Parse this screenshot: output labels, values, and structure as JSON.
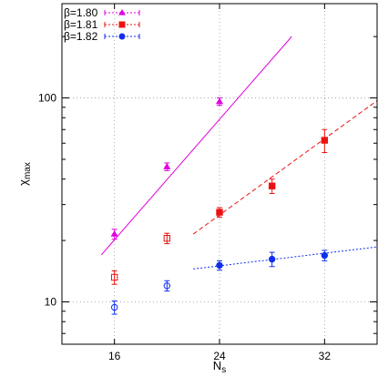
{
  "chart_data": {
    "type": "scatter",
    "title": "",
    "xlabel": "N",
    "xlabel_sub": "s",
    "ylabel": "χ",
    "ylabel_sub": "max",
    "xlim": [
      12,
      36
    ],
    "ylim": [
      6.2,
      290
    ],
    "yscale": "log",
    "xscale": "linear",
    "grid": true,
    "legend_position": "top-left",
    "xticks": [
      16,
      24,
      32
    ],
    "xtick_labels": [
      "16",
      "24",
      "32"
    ],
    "yticks": [
      10,
      100
    ],
    "ytick_labels": [
      "10",
      "100"
    ],
    "series": [
      {
        "name": "β=1.80",
        "color": "#e000e0",
        "marker": "triangle",
        "line_style": "dotted",
        "points": [
          {
            "x": 16,
            "y": 21.5,
            "err": 1.2
          },
          {
            "x": 20,
            "y": 46,
            "err": 2
          },
          {
            "x": 24,
            "y": 96,
            "err": 4
          }
        ],
        "fit": {
          "x": [
            15,
            29.5
          ],
          "y": [
            17,
            200
          ],
          "style": "solid"
        }
      },
      {
        "name": "β=1.81",
        "color": "#ee1111",
        "marker": "square",
        "line_style": "dotted",
        "points": [
          {
            "x": 16,
            "y": 13.2,
            "err": 1.0,
            "open": true
          },
          {
            "x": 20,
            "y": 20.5,
            "err": 1.2,
            "open": true
          },
          {
            "x": 24,
            "y": 27.5,
            "err": 1.5
          },
          {
            "x": 28,
            "y": 37,
            "err": 3
          },
          {
            "x": 32,
            "y": 62,
            "err": 8
          }
        ],
        "fit": {
          "x": [
            22,
            36
          ],
          "y": [
            21.5,
            97
          ],
          "style": "dashed"
        }
      },
      {
        "name": "β=1.82",
        "color": "#1030ee",
        "marker": "circle",
        "line_style": "dotted",
        "points": [
          {
            "x": 16,
            "y": 9.4,
            "err": 0.7,
            "open": true
          },
          {
            "x": 20,
            "y": 12.0,
            "err": 0.7,
            "open": true
          },
          {
            "x": 24,
            "y": 15.1,
            "err": 0.8
          },
          {
            "x": 28,
            "y": 16.2,
            "err": 1.3
          },
          {
            "x": 32,
            "y": 16.9,
            "err": 1.0
          }
        ],
        "fit": {
          "x": [
            22,
            36
          ],
          "y": [
            14.5,
            18.6
          ],
          "style": "dotted"
        }
      }
    ]
  }
}
